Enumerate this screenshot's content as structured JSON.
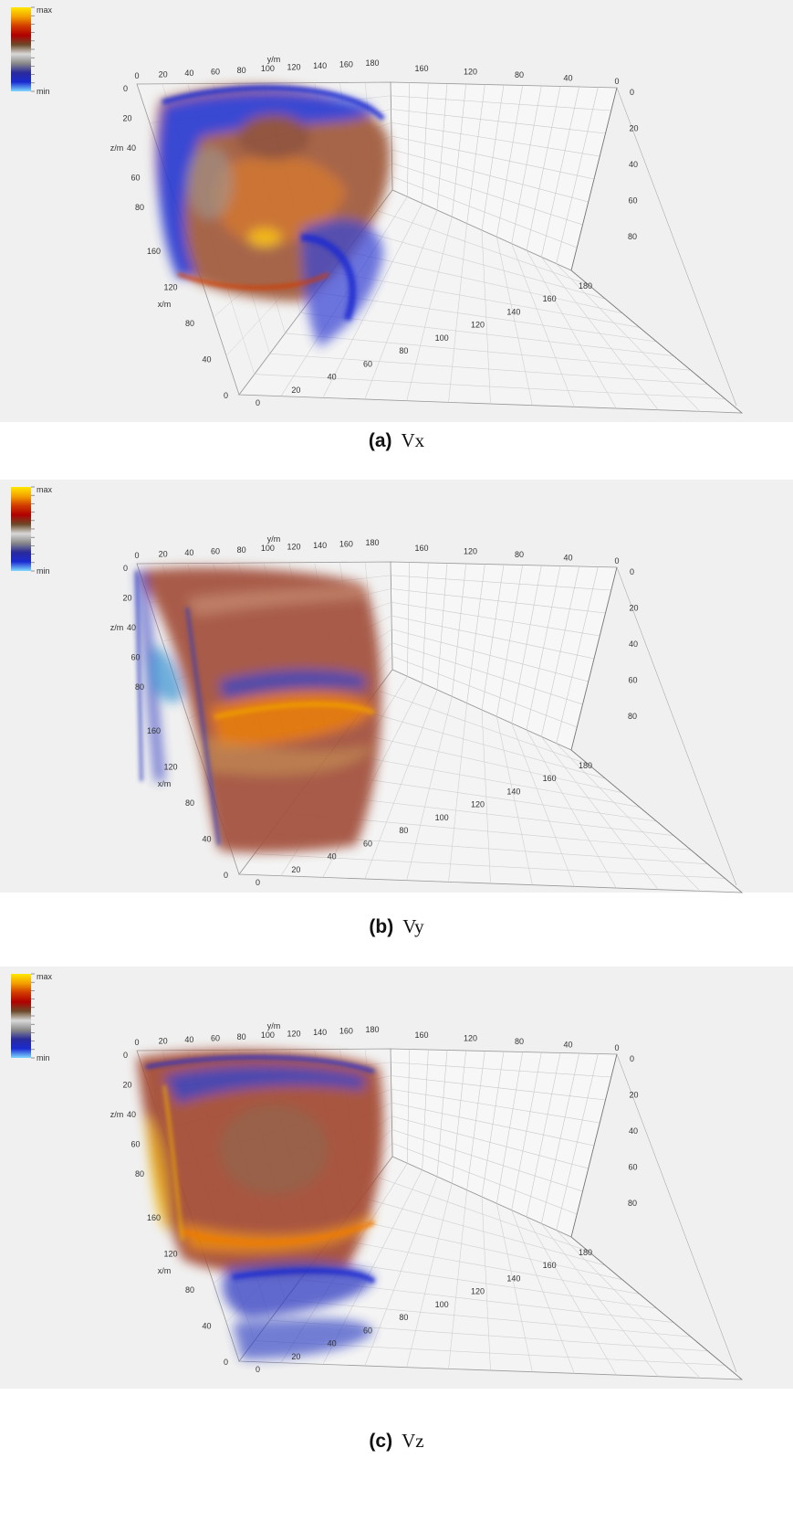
{
  "colorbar": {
    "max_label": "max",
    "min_label": "min",
    "colors": [
      "#ffe800",
      "#f3a000",
      "#d23b00",
      "#b00000",
      "#6b4a2a",
      "#d8d8d8",
      "#8a8a8a",
      "#2a2a9a",
      "#1a2ad0",
      "#7fd8ff"
    ]
  },
  "axes": {
    "y_label": "y/m",
    "z_label": "z/m",
    "x_label": "x/m",
    "y_ticks_front": [
      "0",
      "20",
      "40",
      "60",
      "80",
      "100",
      "120",
      "140",
      "160",
      "180"
    ],
    "y_ticks_back": [
      "160",
      "120",
      "80",
      "40",
      "0"
    ],
    "z_ticks_left": [
      "0",
      "20",
      "40",
      "60",
      "80"
    ],
    "z_ticks_right": [
      "0",
      "20",
      "40",
      "60",
      "80"
    ],
    "x_ticks_left": [
      "160",
      "120",
      "80",
      "40",
      "0"
    ],
    "bottom_ticks": [
      "0",
      "20",
      "40",
      "60",
      "80",
      "100",
      "120",
      "140",
      "160",
      "180"
    ]
  },
  "panels": [
    {
      "letter": "(a)",
      "symbol": "Vx"
    },
    {
      "letter": "(b)",
      "symbol": "Vy"
    },
    {
      "letter": "(c)",
      "symbol": "Vz"
    }
  ]
}
